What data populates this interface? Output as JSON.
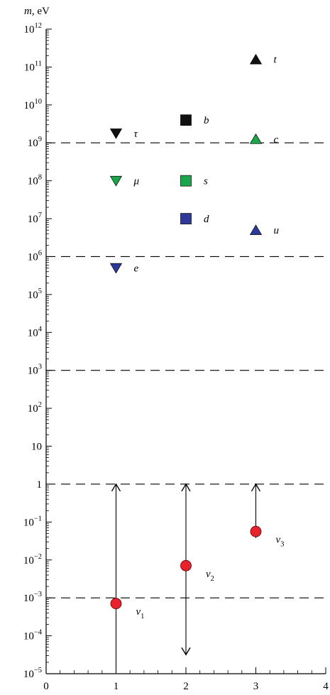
{
  "chart_data": {
    "type": "scatter",
    "title": "",
    "ylabel_var": "m",
    "ylabel_unit": ", eV",
    "xlim": [
      0,
      4
    ],
    "ylim_log10": [
      -5,
      12
    ],
    "y_scale": "log",
    "grid": false,
    "x_ticks": [
      {
        "value": 0,
        "label": "0"
      },
      {
        "value": 1,
        "label": "1"
      },
      {
        "value": 2,
        "label": "2"
      },
      {
        "value": 3,
        "label": "3"
      },
      {
        "value": 4,
        "label": "4"
      }
    ],
    "y_ticks": [
      {
        "exp": 12,
        "base": "10",
        "sup": "12"
      },
      {
        "exp": 11,
        "base": "10",
        "sup": "11"
      },
      {
        "exp": 10,
        "base": "10",
        "sup": "10"
      },
      {
        "exp": 9,
        "base": "10",
        "sup": "9"
      },
      {
        "exp": 8,
        "base": "10",
        "sup": "8"
      },
      {
        "exp": 7,
        "base": "10",
        "sup": "7"
      },
      {
        "exp": 6,
        "base": "10",
        "sup": "6"
      },
      {
        "exp": 5,
        "base": "10",
        "sup": "5"
      },
      {
        "exp": 4,
        "base": "10",
        "sup": "4"
      },
      {
        "exp": 3,
        "base": "10",
        "sup": "3"
      },
      {
        "exp": 2,
        "base": "10",
        "sup": "2"
      },
      {
        "exp": 1,
        "base": "10",
        "sup": ""
      },
      {
        "exp": 0,
        "base": "1",
        "sup": ""
      },
      {
        "exp": -1,
        "base": "10",
        "sup": "−1"
      },
      {
        "exp": -2,
        "base": "10",
        "sup": "−2"
      },
      {
        "exp": -3,
        "base": "10",
        "sup": "−3"
      },
      {
        "exp": -4,
        "base": "10",
        "sup": "−4"
      },
      {
        "exp": -5,
        "base": "10",
        "sup": "−5"
      }
    ],
    "dashed_lines_log10": [
      9,
      6,
      3,
      0,
      -3
    ],
    "points": [
      {
        "label": "t",
        "x": 3,
        "log10_m": 11.2,
        "marker": "triangle-up",
        "color": "#111111"
      },
      {
        "label": "c",
        "x": 3,
        "log10_m": 9.1,
        "marker": "triangle-up",
        "color": "#1aa64b"
      },
      {
        "label": "u",
        "x": 3,
        "log10_m": 6.7,
        "marker": "triangle-up",
        "color": "#2b3a9a"
      },
      {
        "label": "b",
        "x": 2,
        "log10_m": 9.6,
        "marker": "square",
        "color": "#111111"
      },
      {
        "label": "s",
        "x": 2,
        "log10_m": 8.0,
        "marker": "square",
        "color": "#1aa64b"
      },
      {
        "label": "d",
        "x": 2,
        "log10_m": 7.0,
        "marker": "square",
        "color": "#2b3a9a"
      },
      {
        "label": "τ",
        "x": 1,
        "log10_m": 9.25,
        "marker": "triangle-down",
        "color": "#111111"
      },
      {
        "label": "μ",
        "x": 1,
        "log10_m": 8.0,
        "marker": "triangle-down",
        "color": "#1aa64b"
      },
      {
        "label": "e",
        "x": 1,
        "log10_m": 5.7,
        "marker": "triangle-down",
        "color": "#2b3a9a"
      }
    ],
    "neutrinos": [
      {
        "label": "ν",
        "sub": "1",
        "x": 1,
        "log10_m": -3.15,
        "range_log10": [
          -5,
          0
        ],
        "arrow_top": true,
        "arrow_bottom": false,
        "color": "#e8222a"
      },
      {
        "label": "ν",
        "sub": "2",
        "x": 2,
        "log10_m": -2.15,
        "range_log10": [
          -4.5,
          0
        ],
        "arrow_top": true,
        "arrow_bottom": true,
        "color": "#e8222a"
      },
      {
        "label": "ν",
        "sub": "3",
        "x": 3,
        "log10_m": -1.25,
        "range_log10": [
          -1.4,
          0
        ],
        "arrow_top": true,
        "arrow_bottom": true,
        "color": "#e8222a"
      }
    ]
  }
}
